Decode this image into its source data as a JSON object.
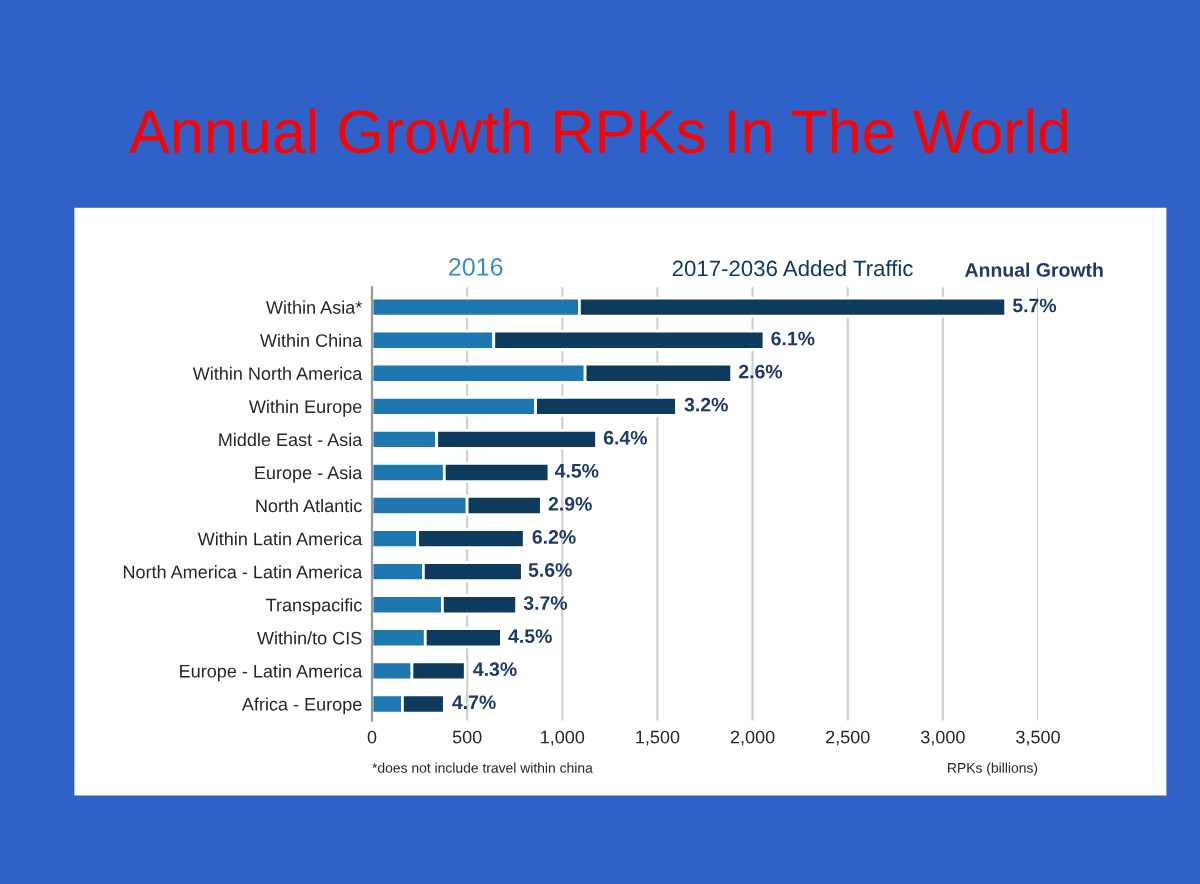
{
  "chart_data": {
    "type": "bar",
    "orientation": "horizontal",
    "stacked": true,
    "title": "Annual Growth RPKs In The World",
    "xlabel": "RPKs (billions)",
    "categories": [
      "Within Asia*",
      "Within China",
      "Within North America",
      "Within Europe",
      "Middle East - Asia",
      "Europe - Asia",
      "North Atlantic",
      "Within Latin America",
      "North America - Latin America",
      "Transpacific",
      "Within/to CIS",
      "Europe - Latin America",
      "Africa - Europe"
    ],
    "series": [
      {
        "name": "2016",
        "color": "#1f77b0",
        "values": [
          1090,
          640,
          1120,
          860,
          340,
          380,
          500,
          240,
          270,
          370,
          280,
          210,
          160
        ]
      },
      {
        "name": "2017-2036 Added Traffic",
        "color": "#0e3a5e",
        "values": [
          2240,
          1420,
          770,
          740,
          840,
          550,
          390,
          560,
          520,
          390,
          400,
          280,
          220
        ]
      }
    ],
    "xlim": [
      0,
      3500
    ],
    "xticks": [
      0,
      500,
      {
        "value": 1000,
        "label": "1,000"
      },
      {
        "value": 1500,
        "label": "1,500"
      },
      {
        "value": 2000,
        "label": "2,000"
      },
      {
        "value": 2500,
        "label": "2,500"
      },
      {
        "value": 3000,
        "label": "3,000"
      },
      {
        "value": 3500,
        "label": "3,500"
      }
    ],
    "grid": "x",
    "legend": false,
    "annotations": [
      "Annual Growth",
      "*does not include travel within china",
      {
        "text": "5.7%",
        "x": 3325,
        "y": "Within Asia*"
      },
      {
        "text": "6.1%",
        "x": 2055,
        "y": "Within China"
      },
      {
        "text": "2.6%",
        "x": 1885,
        "y": "Within North America"
      },
      {
        "text": "3.2%",
        "x": 1600,
        "y": "Within Europe"
      },
      {
        "text": "6.4%",
        "x": 1175,
        "y": "Middle East - Asia"
      },
      {
        "text": "4.5%",
        "x": 920,
        "y": "Europe - Asia"
      },
      {
        "text": "2.9%",
        "x": 885,
        "y": "North Atlantic"
      },
      {
        "text": "6.2%",
        "x": 800,
        "y": "Within Latin America"
      },
      {
        "text": "5.6%",
        "x": 780,
        "y": "North America - Latin America"
      },
      {
        "text": "3.7%",
        "x": 755,
        "y": "Transpacific"
      },
      {
        "text": "4.5%",
        "x": 675,
        "y": "Within/to CIS"
      },
      {
        "text": "4.3%",
        "x": 490,
        "y": "Europe - Latin America"
      },
      {
        "text": "4.7%",
        "x": 380,
        "y": "Africa - Europe"
      }
    ]
  }
}
